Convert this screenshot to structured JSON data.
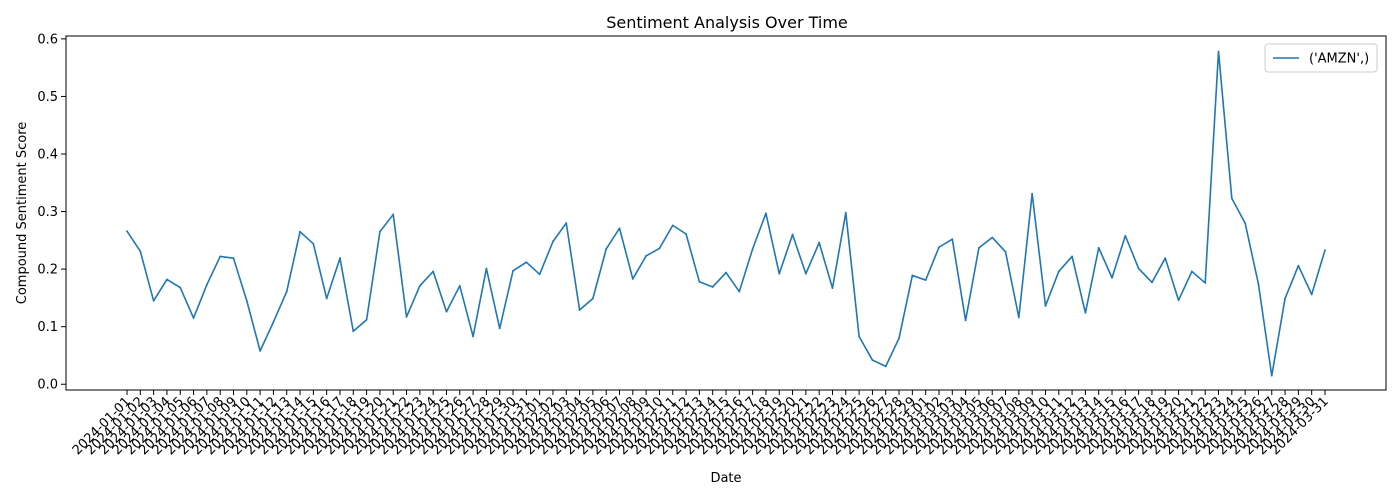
{
  "chart_data": {
    "type": "line",
    "title": "Sentiment Analysis Over Time",
    "xlabel": "Date",
    "ylabel": "Compound Sentiment Score",
    "ylim": [
      -0.01,
      0.605
    ],
    "yticks": [
      0.0,
      0.1,
      0.2,
      0.3,
      0.4,
      0.5,
      0.6
    ],
    "ytick_labels": [
      "0.0",
      "0.1",
      "0.2",
      "0.3",
      "0.4",
      "0.5",
      "0.6"
    ],
    "grid": false,
    "legend_position": "top-right",
    "x": [
      "2024-01-01",
      "2024-01-02",
      "2024-01-03",
      "2024-01-04",
      "2024-01-05",
      "2024-01-06",
      "2024-01-07",
      "2024-01-08",
      "2024-01-09",
      "2024-01-10",
      "2024-01-11",
      "2024-01-12",
      "2024-01-13",
      "2024-01-14",
      "2024-01-15",
      "2024-01-16",
      "2024-01-17",
      "2024-01-18",
      "2024-01-19",
      "2024-01-20",
      "2024-01-21",
      "2024-01-22",
      "2024-01-23",
      "2024-01-24",
      "2024-01-25",
      "2024-01-26",
      "2024-01-27",
      "2024-01-28",
      "2024-01-29",
      "2024-01-30",
      "2024-01-31",
      "2024-02-01",
      "2024-02-02",
      "2024-02-03",
      "2024-02-04",
      "2024-02-05",
      "2024-02-06",
      "2024-02-07",
      "2024-02-08",
      "2024-02-09",
      "2024-02-10",
      "2024-02-11",
      "2024-02-12",
      "2024-02-13",
      "2024-02-14",
      "2024-02-15",
      "2024-02-16",
      "2024-02-17",
      "2024-02-18",
      "2024-02-19",
      "2024-02-20",
      "2024-02-21",
      "2024-02-22",
      "2024-02-23",
      "2024-02-24",
      "2024-02-25",
      "2024-02-26",
      "2024-02-27",
      "2024-02-28",
      "2024-02-29",
      "2024-03-01",
      "2024-03-02",
      "2024-03-03",
      "2024-03-04",
      "2024-03-05",
      "2024-03-06",
      "2024-03-07",
      "2024-03-08",
      "2024-03-09",
      "2024-03-10",
      "2024-03-11",
      "2024-03-12",
      "2024-03-13",
      "2024-03-14",
      "2024-03-15",
      "2024-03-16",
      "2024-03-17",
      "2024-03-18",
      "2024-03-19",
      "2024-03-20",
      "2024-03-21",
      "2024-03-22",
      "2024-03-23",
      "2024-03-24",
      "2024-03-25",
      "2024-03-26",
      "2024-03-27",
      "2024-03-28",
      "2024-03-29",
      "2024-03-30",
      "2024-03-31"
    ],
    "series": [
      {
        "name": "('AMZN',)",
        "color": "#1f77b4",
        "values": [
          0.266,
          0.231,
          0.145,
          0.182,
          0.168,
          0.115,
          0.173,
          0.222,
          0.219,
          0.145,
          0.058,
          0.108,
          0.161,
          0.265,
          0.244,
          0.149,
          0.219,
          0.092,
          0.112,
          0.265,
          0.295,
          0.117,
          0.171,
          0.196,
          0.126,
          0.171,
          0.083,
          0.201,
          0.097,
          0.197,
          0.212,
          0.191,
          0.248,
          0.28,
          0.129,
          0.149,
          0.235,
          0.271,
          0.183,
          0.223,
          0.236,
          0.276,
          0.261,
          0.178,
          0.169,
          0.194,
          0.161,
          0.235,
          0.297,
          0.192,
          0.26,
          0.192,
          0.246,
          0.167,
          0.298,
          0.083,
          0.042,
          0.031,
          0.08,
          0.189,
          0.181,
          0.238,
          0.252,
          0.111,
          0.237,
          0.255,
          0.23,
          0.116,
          0.331,
          0.136,
          0.196,
          0.222,
          0.124,
          0.237,
          0.185,
          0.258,
          0.201,
          0.177,
          0.219,
          0.146,
          0.196,
          0.176,
          0.578,
          0.323,
          0.28,
          0.174,
          0.015,
          0.149,
          0.206,
          0.156,
          0.233
        ]
      }
    ]
  }
}
